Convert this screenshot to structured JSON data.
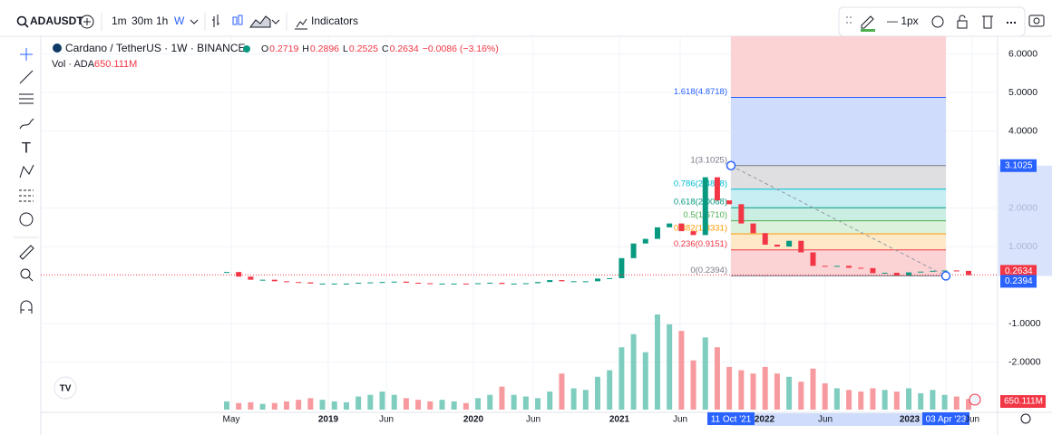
{
  "toolbar": {
    "symbol": "ADAUSDT",
    "intervals": [
      "1m",
      "30m",
      "1h",
      "W"
    ],
    "indicators": "Indicators",
    "line_width": "— 1px"
  },
  "legend": {
    "title": "Cardano / TetherUS · 1W · BINANCE",
    "ohlc": [
      {
        "key": "O",
        "value": "0.2719"
      },
      {
        "key": "H",
        "value": "0.2896"
      },
      {
        "key": "L",
        "value": "0.2525"
      },
      {
        "key": "C",
        "value": "0.2634"
      }
    ],
    "change": "−0.0086 (−3.16%)",
    "volume_title": "Vol · ADA",
    "volume_value": "650.111M"
  },
  "chart": {
    "yticks": [
      {
        "value": 6,
        "label": "6.0000"
      },
      {
        "value": 5,
        "label": "5.0000"
      },
      {
        "value": 4,
        "label": "4.0000"
      },
      {
        "value": 2,
        "label": "2.0000"
      },
      {
        "value": 1,
        "label": "1.0000"
      },
      {
        "value": -1,
        "label": "-1.0000"
      },
      {
        "value": -2,
        "label": "-2.0000"
      }
    ],
    "time_labels": [
      "May",
      "2019",
      "Jun",
      "2020",
      "Jun",
      "2021",
      "Jun",
      "11 Oct '21",
      "2022",
      "Jun",
      "2023",
      "03 Apr '23",
      "Jun"
    ],
    "closes": [
      0.34,
      0.22,
      0.14,
      0.14,
      0.1,
      0.08,
      0.07,
      0.04,
      0.04,
      0.04,
      0.04,
      0.06,
      0.07,
      0.08,
      0.09,
      0.06,
      0.05,
      0.04,
      0.04,
      0.04,
      0.03,
      0.05,
      0.06,
      0.03,
      0.04,
      0.05,
      0.08,
      0.13,
      0.1,
      0.1,
      0.1,
      0.17,
      0.18,
      0.7,
      1.08,
      1.2,
      1.5,
      1.6,
      1.4,
      1.3,
      2.8,
      2.2,
      2.1,
      1.6,
      1.35,
      1.05,
      1.0,
      1.15,
      0.85,
      0.5,
      0.48,
      0.5,
      0.45,
      0.44,
      0.31,
      0.32,
      0.25,
      0.33,
      0.35,
      0.37,
      0.38,
      0.37,
      0.26
    ],
    "volumes": [
      500,
      400,
      450,
      350,
      400,
      500,
      600,
      700,
      600,
      500,
      450,
      800,
      900,
      1100,
      900,
      700,
      600,
      500,
      600,
      500,
      400,
      700,
      900,
      1400,
      900,
      800,
      700,
      1100,
      2200,
      1300,
      1200,
      2000,
      2400,
      3800,
      4600,
      3500,
      5800,
      5200,
      4800,
      3000,
      4400,
      3800,
      2600,
      2400,
      2200,
      2600,
      2200,
      2000,
      1700,
      2500,
      1600,
      1300,
      1200,
      1100,
      1300,
      1200,
      1100,
      1300,
      1000,
      1200,
      900,
      800,
      650
    ],
    "fib_levels": [
      {
        "label": "1.618(4.8718)",
        "value": 4.8718,
        "color": "#2962ff",
        "fill": "#cfdcfb"
      },
      {
        "label": "1(3.1025)",
        "value": 3.1025,
        "color": "#787b86",
        "fill": "#dfdfe1"
      },
      {
        "label": "0.786(2.4898)",
        "value": 2.4898,
        "color": "#00bcd4",
        "fill": "#c6eef3"
      },
      {
        "label": "0.618(2.0088)",
        "value": 2.0088,
        "color": "#089981",
        "fill": "#cbeee3"
      },
      {
        "label": "0.5(1.6710)",
        "value": 1.671,
        "color": "#4caf50",
        "fill": "#dcf1dc"
      },
      {
        "label": "0.382(1.3331)",
        "value": 1.3331,
        "color": "#ff9800",
        "fill": "#fde8c8"
      },
      {
        "label": "0.236(0.9151)",
        "value": 0.9151,
        "color": "#f23645",
        "fill": "#fbd3d5"
      },
      {
        "label": "0(0.2394)",
        "value": 0.2394,
        "color": "#787b86",
        "fill": null
      }
    ],
    "top_fill": "#fbd3d5",
    "price_tags": [
      {
        "label": "3.1025",
        "value": 3.1025,
        "color": "#2962ff"
      },
      {
        "label": "0.2634",
        "value": 0.2634,
        "color": "#f23645"
      },
      {
        "label": "0.2394",
        "value": 0.2394,
        "color": "#2962ff"
      }
    ],
    "volume_tag": "650.111M"
  }
}
